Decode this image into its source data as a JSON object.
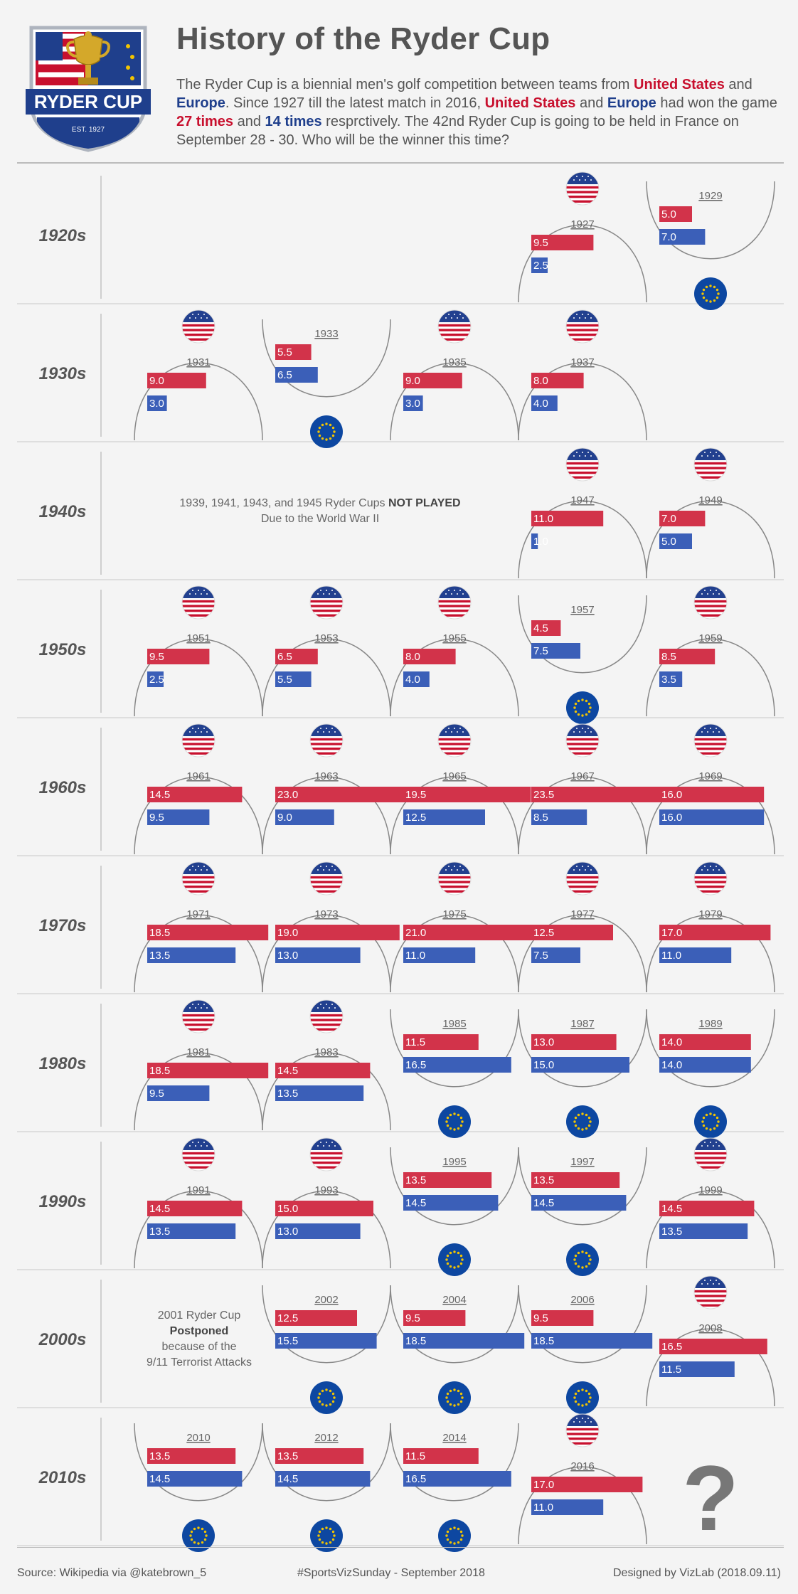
{
  "header": {
    "title": "History of the Ryder Cup",
    "logo_text": "RYDER CUP",
    "logo_est": "EST. 1927",
    "intro": [
      {
        "t": "The Ryder Cup is a biennial men's golf competition between teams from ",
        "s": ""
      },
      {
        "t": "United States",
        "s": "us"
      },
      {
        "t": " and ",
        "s": ""
      },
      {
        "t": "Europe",
        "s": "eu"
      },
      {
        "t": ". Since 1927 till the latest match in 2016, ",
        "s": ""
      },
      {
        "t": "United States",
        "s": "us"
      },
      {
        "t": " and ",
        "s": ""
      },
      {
        "t": "Europe",
        "s": "eu"
      },
      {
        "t": " had won the game ",
        "s": ""
      },
      {
        "t": "27 times",
        "s": "us"
      },
      {
        "t": " and ",
        "s": ""
      },
      {
        "t": "14 times",
        "s": "eu"
      },
      {
        "t": " resprctively. The 42nd Ryder Cup is going to be held in France on September 28 - 30. Who will be the winner this time?",
        "s": ""
      }
    ]
  },
  "colors": {
    "us": "#d2334a",
    "eu": "#3b5fb8",
    "eu_circle": "#0d47a1",
    "star": "#f2c400",
    "arc": "#888888",
    "text": "#555555"
  },
  "chart_data": {
    "type": "bar",
    "title": "History of the Ryder Cup",
    "series_names": [
      "United States",
      "Europe"
    ],
    "value_range": [
      0,
      24
    ],
    "decades": [
      {
        "label": "1920s",
        "slots": [
          null,
          null,
          null,
          {
            "year": "1927",
            "us": 9.5,
            "eu": 2.5,
            "us_label": "9.5",
            "eu_label": "2.5",
            "winner": "us"
          },
          {
            "year": "1929",
            "us": 5.0,
            "eu": 7.0,
            "us_label": "5.0",
            "eu_label": "7.0",
            "winner": "eu"
          }
        ]
      },
      {
        "label": "1930s",
        "slots": [
          {
            "year": "1931",
            "us": 9.0,
            "eu": 3.0,
            "us_label": "9.0",
            "eu_label": "3.0",
            "winner": "us"
          },
          {
            "year": "1933",
            "us": 5.5,
            "eu": 6.5,
            "us_label": "5.5",
            "eu_label": "6.5",
            "winner": "eu"
          },
          {
            "year": "1935",
            "us": 9.0,
            "eu": 3.0,
            "us_label": "9.0",
            "eu_label": "3.0",
            "winner": "us"
          },
          {
            "year": "1937",
            "us": 8.0,
            "eu": 4.0,
            "us_label": "8.0",
            "eu_label": "4.0",
            "winner": "us"
          },
          null
        ]
      },
      {
        "label": "1940s",
        "note": {
          "lines": [
            [
              {
                "t": "1939, 1941, 1943, and 1945 Ryder Cups ",
                "b": false
              },
              {
                "t": "NOT PLAYED",
                "b": true
              }
            ],
            [
              {
                "t": "Due to the World War II",
                "b": false
              }
            ]
          ]
        },
        "slots": [
          null,
          null,
          null,
          {
            "year": "1947",
            "us": 11.0,
            "eu": 1.0,
            "us_label": "11.0",
            "eu_label": "1.0",
            "winner": "us"
          },
          {
            "year": "1949",
            "us": 7.0,
            "eu": 5.0,
            "us_label": "7.0",
            "eu_label": "5.0",
            "winner": "us"
          }
        ]
      },
      {
        "label": "1950s",
        "slots": [
          {
            "year": "1951",
            "us": 9.5,
            "eu": 2.5,
            "us_label": "9.5",
            "eu_label": "2.5",
            "winner": "us"
          },
          {
            "year": "1953",
            "us": 6.5,
            "eu": 5.5,
            "us_label": "6.5",
            "eu_label": "5.5",
            "winner": "us"
          },
          {
            "year": "1955",
            "us": 8.0,
            "eu": 4.0,
            "us_label": "8.0",
            "eu_label": "4.0",
            "winner": "us"
          },
          {
            "year": "1957",
            "us": 4.5,
            "eu": 7.5,
            "us_label": "4.5",
            "eu_label": "7.5",
            "winner": "eu"
          },
          {
            "year": "1959",
            "us": 8.5,
            "eu": 3.5,
            "us_label": "8.5",
            "eu_label": "3.5",
            "winner": "us"
          }
        ]
      },
      {
        "label": "1960s",
        "slots": [
          {
            "year": "1961",
            "us": 14.5,
            "eu": 9.5,
            "us_label": "14.5",
            "eu_label": "9.5",
            "winner": "us"
          },
          {
            "year": "1963",
            "us": 23.0,
            "eu": 9.0,
            "us_label": "23.0",
            "eu_label": "9.0",
            "winner": "us"
          },
          {
            "year": "1965",
            "us": 19.5,
            "eu": 12.5,
            "us_label": "19.5",
            "eu_label": "12.5",
            "winner": "us"
          },
          {
            "year": "1967",
            "us": 23.5,
            "eu": 8.5,
            "us_label": "23.5",
            "eu_label": "8.5",
            "winner": "us"
          },
          {
            "year": "1969",
            "us": 16.0,
            "eu": 16.0,
            "us_label": "16.0",
            "eu_label": "16.0",
            "winner": "us"
          }
        ]
      },
      {
        "label": "1970s",
        "slots": [
          {
            "year": "1971",
            "us": 18.5,
            "eu": 13.5,
            "us_label": "18.5",
            "eu_label": "13.5",
            "winner": "us"
          },
          {
            "year": "1973",
            "us": 19.0,
            "eu": 13.0,
            "us_label": "19.0",
            "eu_label": "13.0",
            "winner": "us"
          },
          {
            "year": "1975",
            "us": 21.0,
            "eu": 11.0,
            "us_label": "21.0",
            "eu_label": "11.0",
            "winner": "us"
          },
          {
            "year": "1977",
            "us": 12.5,
            "eu": 7.5,
            "us_label": "12.5",
            "eu_label": "7.5",
            "winner": "us"
          },
          {
            "year": "1979",
            "us": 17.0,
            "eu": 11.0,
            "us_label": "17.0",
            "eu_label": "11.0",
            "winner": "us"
          }
        ]
      },
      {
        "label": "1980s",
        "slots": [
          {
            "year": "1981",
            "us": 18.5,
            "eu": 9.5,
            "us_label": "18.5",
            "eu_label": "9.5",
            "winner": "us"
          },
          {
            "year": "1983",
            "us": 14.5,
            "eu": 13.5,
            "us_label": "14.5",
            "eu_label": "13.5",
            "winner": "us"
          },
          {
            "year": "1985",
            "us": 11.5,
            "eu": 16.5,
            "us_label": "11.5",
            "eu_label": "16.5",
            "winner": "eu"
          },
          {
            "year": "1987",
            "us": 13.0,
            "eu": 15.0,
            "us_label": "13.0",
            "eu_label": "15.0",
            "winner": "eu"
          },
          {
            "year": "1989",
            "us": 14.0,
            "eu": 14.0,
            "us_label": "14.0",
            "eu_label": "14.0",
            "winner": "eu"
          }
        ]
      },
      {
        "label": "1990s",
        "slots": [
          {
            "year": "1991",
            "us": 14.5,
            "eu": 13.5,
            "us_label": "14.5",
            "eu_label": "13.5",
            "winner": "us"
          },
          {
            "year": "1993",
            "us": 15.0,
            "eu": 13.0,
            "us_label": "15.0",
            "eu_label": "13.0",
            "winner": "us"
          },
          {
            "year": "1995",
            "us": 13.5,
            "eu": 14.5,
            "us_label": "13.5",
            "eu_label": "14.5",
            "winner": "eu"
          },
          {
            "year": "1997",
            "us": 13.5,
            "eu": 14.5,
            "us_label": "13.5",
            "eu_label": "14.5",
            "winner": "eu"
          },
          {
            "year": "1999",
            "us": 14.5,
            "eu": 13.5,
            "us_label": "14.5",
            "eu_label": "13.5",
            "winner": "us"
          }
        ]
      },
      {
        "label": "2000s",
        "note": {
          "lines": [
            [
              {
                "t": "2001 Ryder Cup",
                "b": false
              }
            ],
            [
              {
                "t": "Postponed",
                "b": true
              }
            ],
            [
              {
                "t": "because of the",
                "b": false
              }
            ],
            [
              {
                "t": "9/11 Terrorist Attacks",
                "b": false
              }
            ]
          ]
        },
        "slots": [
          null,
          {
            "year": "2002",
            "us": 12.5,
            "eu": 15.5,
            "us_label": "12.5",
            "eu_label": "15.5",
            "winner": "eu"
          },
          {
            "year": "2004",
            "us": 9.5,
            "eu": 18.5,
            "us_label": "9.5",
            "eu_label": "18.5",
            "winner": "eu"
          },
          {
            "year": "2006",
            "us": 9.5,
            "eu": 18.5,
            "us_label": "9.5",
            "eu_label": "18.5",
            "winner": "eu"
          },
          {
            "year": "2008",
            "us": 16.5,
            "eu": 11.5,
            "us_label": "16.5",
            "eu_label": "11.5",
            "winner": "us"
          }
        ]
      },
      {
        "label": "2010s",
        "slots": [
          {
            "year": "2010",
            "us": 13.5,
            "eu": 14.5,
            "us_label": "13.5",
            "eu_label": "14.5",
            "winner": "eu"
          },
          {
            "year": "2012",
            "us": 13.5,
            "eu": 14.5,
            "us_label": "13.5",
            "eu_label": "14.5",
            "winner": "eu"
          },
          {
            "year": "2014",
            "us": 11.5,
            "eu": 16.5,
            "us_label": "11.5",
            "eu_label": "16.5",
            "winner": "eu"
          },
          {
            "year": "2016",
            "us": 17.0,
            "eu": 11.0,
            "us_label": "17.0",
            "eu_label": "11.0",
            "winner": "us"
          },
          {
            "question": "?"
          }
        ]
      }
    ]
  },
  "footer": {
    "source": "Source: Wikipedia via @katebrown_5",
    "tag": "#SportsVizSunday - September 2018",
    "credit": "Designed by VizLab (2018.09.11)"
  }
}
